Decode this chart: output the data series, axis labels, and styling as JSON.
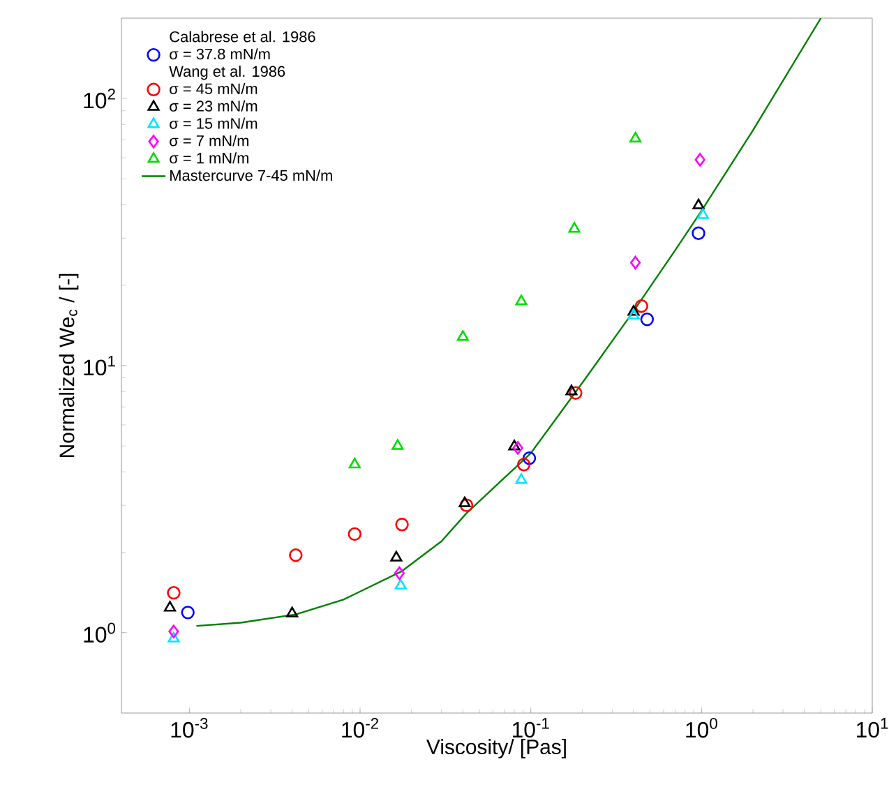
{
  "chart_data": {
    "type": "scatter",
    "xlabel": "Viscosity/ [Pas]",
    "ylabel": "Normalized We$_{c}$ / [-]",
    "log": "xy",
    "legend": "top left",
    "grid": false,
    "annotations": [
      "Calabrese et al. 1986",
      "Wang et al. 1986"
    ],
    "xlim": [
      0.0004,
      10
    ],
    "ylim": [
      0.5,
      200
    ],
    "xticks": [
      {
        "value": 0.001,
        "label": "10$^{-3}$"
      },
      {
        "value": 0.01,
        "label": "10$^{-2}$"
      },
      {
        "value": 0.1,
        "label": "10$^{-1}$"
      },
      {
        "value": 1,
        "label": "10$^{0}$"
      },
      {
        "value": 10,
        "label": "10$^{1}$"
      }
    ],
    "yticks": [
      {
        "value": 1,
        "label": "10$^{0}$"
      },
      {
        "value": 10,
        "label": "10$^{1}$"
      },
      {
        "value": 100,
        "label": "10$^{2}$"
      }
    ],
    "series": [
      {
        "name": "σ = 37.8 mN/m",
        "color": "#0000ff",
        "marker": "circle",
        "x": [
          0.00098,
          0.098,
          0.48,
          0.96
        ],
        "values": [
          1.19,
          4.5,
          14.9,
          31.3
        ]
      },
      {
        "name": "σ = 45 mN/m",
        "color": "#ff0000",
        "marker": "circle",
        "x": [
          0.00081,
          0.0042,
          0.0093,
          0.0176,
          0.042,
          0.091,
          0.183,
          0.445
        ],
        "values": [
          1.41,
          1.95,
          2.34,
          2.54,
          3.0,
          4.26,
          7.9,
          16.7
        ]
      },
      {
        "name": "σ = 23 mN/m",
        "color": "#000000",
        "marker": "triangle",
        "x": [
          0.00077,
          0.004,
          0.0163,
          0.041,
          0.08,
          0.173,
          0.4,
          0.96
        ],
        "values": [
          1.24,
          1.18,
          1.91,
          3.05,
          4.98,
          8.0,
          15.9,
          39.8
        ]
      },
      {
        "name": "σ = 15 mN/m",
        "color": "#00e5ff",
        "marker": "triangle",
        "x": [
          0.00081,
          0.0173,
          0.088,
          0.4,
          1.02
        ],
        "values": [
          0.95,
          1.5,
          3.73,
          15.4,
          36.6
        ]
      },
      {
        "name": "σ = 7 mN/m",
        "color": "#ff00ff",
        "marker": "diamond",
        "x": [
          0.00081,
          0.017,
          0.084,
          0.41,
          0.98
        ],
        "values": [
          1.01,
          1.67,
          4.92,
          24.3,
          59
        ]
      },
      {
        "name": "σ = 1 mN/m",
        "color": "#00dd00",
        "marker": "triangle",
        "x": [
          0.0093,
          0.0166,
          0.04,
          0.088,
          0.18,
          0.41
        ],
        "values": [
          4.26,
          5.0,
          12.8,
          17.4,
          32.5,
          70.8
        ]
      },
      {
        "name": "Mastercurve 7-45 mN/m",
        "type": "line",
        "color": "#008000",
        "marker": "none",
        "line_style": "solid",
        "x": [
          0.0011,
          0.002,
          0.0042,
          0.008,
          0.0176,
          0.03,
          0.042,
          0.07,
          0.1,
          0.2,
          0.4,
          0.7,
          1,
          2,
          5
        ],
        "values": [
          1.06,
          1.09,
          1.17,
          1.33,
          1.7,
          2.2,
          2.8,
          3.8,
          4.7,
          8.6,
          16,
          27,
          38,
          76,
          200
        ]
      }
    ]
  }
}
